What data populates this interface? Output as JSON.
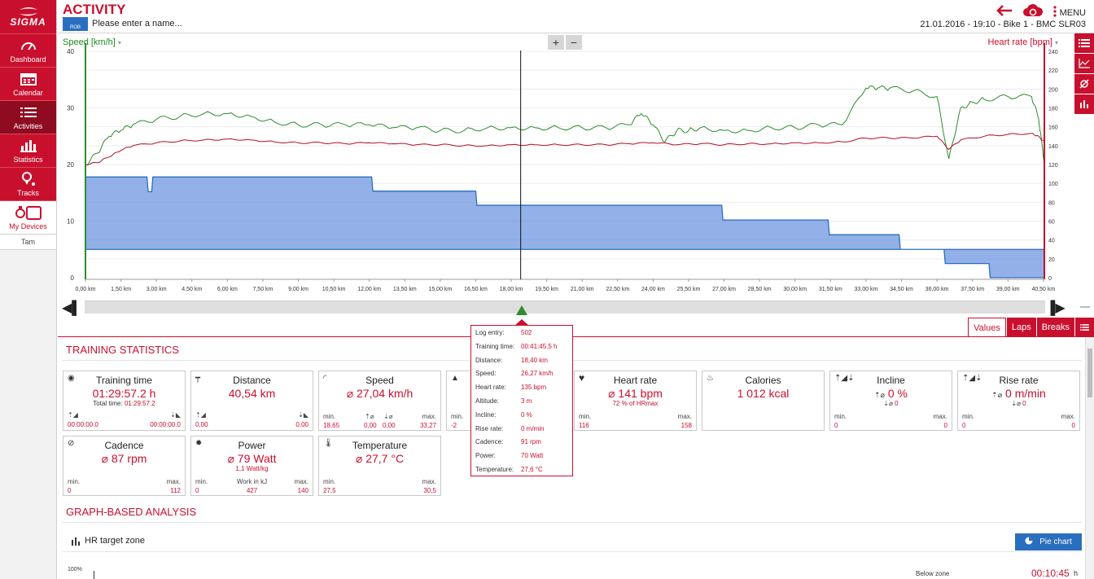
{
  "brand": {
    "name": "SIGMA"
  },
  "sidebar": {
    "items": [
      {
        "label": "Dashboard",
        "icon": "gauge-icon"
      },
      {
        "label": "Calendar",
        "icon": "calendar-icon"
      },
      {
        "label": "Activities",
        "icon": "list-icon",
        "active": true
      },
      {
        "label": "Statistics",
        "icon": "bar-chart-icon"
      },
      {
        "label": "Tracks",
        "icon": "map-pin-icon"
      },
      {
        "label": "My Devices",
        "icon": "devices-icon"
      }
    ],
    "user": "Tam"
  },
  "header": {
    "title": "ACTIVITY",
    "sport_badge": "ROB",
    "name_placeholder": "Please enter a name...",
    "menu_label": "MENU",
    "info": "21.01.2016  -  19:10  -  Bike 1  -  BMC SLR03"
  },
  "chart": {
    "left_axis_label": "Speed [km/h]",
    "right_axis_label": "Heart rate [bpm]",
    "zoom_in": "+",
    "zoom_out": "−"
  },
  "chart_data": {
    "type": "line",
    "x_label_unit": "km",
    "x_ticks": [
      "0,00 km",
      "1,50 km",
      "3,00 km",
      "4,50 km",
      "6,00 km",
      "7,50 km",
      "9,00 km",
      "10,50 km",
      "12,00 km",
      "13,50 km",
      "15,00 km",
      "16,50 km",
      "18,00 km",
      "19,50 km",
      "21,00 km",
      "22,50 km",
      "24,00 km",
      "25,50 km",
      "27,00 km",
      "28,50 km",
      "30,00 km",
      "31,50 km",
      "33,00 km",
      "34,50 km",
      "36,00 km",
      "37,50 km",
      "39,00 km",
      "40,50 km"
    ],
    "y_left_ticks": [
      "0",
      "10",
      "20",
      "30",
      "40"
    ],
    "y_left_range": [
      0,
      40
    ],
    "y_right_ticks": [
      "0",
      "20",
      "40",
      "60",
      "80",
      "100",
      "120",
      "140",
      "160",
      "180",
      "200",
      "220",
      "240"
    ],
    "y_right_range": [
      0,
      240
    ],
    "xlim": [
      0,
      40.54
    ],
    "cursor_x": 18.4,
    "series": [
      {
        "color": "#2e8b2e",
        "x": [
          0,
          0.5,
          1,
          1.5,
          2,
          3,
          4,
          5,
          6,
          7,
          8,
          9,
          10,
          11,
          12,
          13,
          14,
          15,
          16,
          17,
          18,
          19,
          20,
          21,
          22,
          23,
          23.5,
          24,
          24.5,
          25,
          25.5,
          26,
          27,
          28,
          29,
          30,
          31,
          32,
          33,
          33.5,
          34,
          35,
          36,
          36.5,
          37,
          37.5,
          38,
          39,
          40,
          40.3,
          40.54
        ],
        "values": [
          20,
          22,
          25,
          26,
          27,
          28,
          28.5,
          29,
          29,
          28.5,
          27.5,
          27,
          27,
          27,
          27,
          26.5,
          26.5,
          26,
          26,
          26.5,
          26.5,
          26.5,
          26.5,
          26.5,
          26.5,
          27,
          29,
          27,
          24,
          26,
          26,
          26.5,
          26,
          26,
          26.5,
          26.5,
          27,
          27,
          33.5,
          33.5,
          33.5,
          33,
          32,
          21,
          30,
          31,
          31.5,
          32,
          32,
          28,
          20
        ]
      },
      {
        "color": "#b0102a",
        "x": [
          0,
          0.5,
          1,
          1.5,
          2,
          3,
          4,
          5,
          6,
          7,
          8,
          9,
          10,
          11,
          12,
          13,
          14,
          15,
          16,
          17,
          18,
          19,
          20,
          21,
          22,
          23,
          24,
          25,
          26,
          27,
          28,
          29,
          30,
          31,
          32,
          33,
          34,
          35,
          36,
          36.5,
          37,
          38,
          39,
          40,
          40.3,
          40.54
        ],
        "values": [
          120,
          122,
          128,
          135,
          140,
          143,
          145,
          146,
          147,
          146,
          144,
          143,
          143,
          142,
          143,
          142,
          141,
          141,
          140,
          140,
          141,
          141,
          141,
          141,
          141,
          142,
          143,
          141,
          142,
          141,
          142,
          142,
          143,
          143,
          144,
          148,
          148,
          148,
          150,
          136,
          146,
          150,
          152,
          153,
          150,
          144
        ]
      },
      {
        "color": "#6f95e0",
        "fill": true,
        "x": [
          0,
          2.6,
          2.65,
          2.8,
          2.85,
          12.1,
          12.15,
          16.5,
          16.55,
          22.0,
          26.9,
          26.95,
          31.4,
          31.45,
          34.4,
          34.45,
          36.3,
          36.35,
          38.2,
          38.25,
          40.54
        ],
        "values": [
          17.8,
          17.8,
          15.2,
          15.2,
          17.8,
          17.8,
          15.3,
          15.3,
          12.8,
          12.8,
          12.8,
          10.2,
          10.2,
          7.6,
          7.6,
          5.0,
          5.0,
          2.5,
          2.5,
          0,
          0
        ]
      }
    ]
  },
  "tabs": [
    "Values",
    "Laps",
    "Breaks"
  ],
  "training_stats_title": "TRAINING STATISTICS",
  "cards": {
    "training_time": {
      "title": "Training time",
      "value": "01:29:57.2 h",
      "sub_label": "Total time:",
      "sub_value": "01:29:57.2",
      "left": "00:00:00.0",
      "right": "00:00:00.0"
    },
    "distance": {
      "title": "Distance",
      "value": "40,54 km",
      "left": "0,00",
      "right": "0,00"
    },
    "speed": {
      "title": "Speed",
      "value": "⌀ 27,04 km/h",
      "min_label": "min.",
      "min": "18,65",
      "up": "0,00",
      "down": "0,00",
      "max_label": "max.",
      "max": "33,27"
    },
    "altitude": {
      "min_label": "min.",
      "min": "-2"
    },
    "heart_rate": {
      "title": "Heart rate",
      "value": "⌀ 141 bpm",
      "sub": "72 % of HRmax",
      "min_label": "min.",
      "min": "116",
      "max_label": "max.",
      "max": "158"
    },
    "calories": {
      "title": "Calories",
      "value": "1 012 kcal"
    },
    "incline": {
      "title": "Incline",
      "value": "0 %",
      "down": "0",
      "min_label": "min.",
      "min": "0",
      "max_label": "max.",
      "max": "0"
    },
    "rise_rate": {
      "title": "Rise rate",
      "value": "0 m/min",
      "down": "0",
      "min_label": "min.",
      "min": "0",
      "max_label": "max.",
      "max": "0"
    },
    "cadence": {
      "title": "Cadence",
      "value": "⌀ 87 rpm",
      "min_label": "min.",
      "min": "0",
      "max_label": "max.",
      "max": "112"
    },
    "power": {
      "title": "Power",
      "value": "⌀ 79 Watt",
      "sub": "1,1 Watt/kg",
      "min_label": "min.",
      "min": "0",
      "work_label": "Work in kJ",
      "work": "427",
      "max_label": "max.",
      "max": "140"
    },
    "temperature": {
      "title": "Temperature",
      "value": "⌀ 27,7 °C",
      "min_label": "min.",
      "min": "27,5",
      "max_label": "max.",
      "max": "30,5"
    }
  },
  "tooltip": [
    {
      "k": "Log entry:",
      "v": "502"
    },
    {
      "k": "Training time:",
      "v": "00:41:45.5 h"
    },
    {
      "k": "Distance:",
      "v": "18,40 km"
    },
    {
      "k": "Speed:",
      "v": "26,27 km/h"
    },
    {
      "k": "Heart rate:",
      "v": "135 bpm"
    },
    {
      "k": "Altitude:",
      "v": "3 m"
    },
    {
      "k": "Incline:",
      "v": "0 %"
    },
    {
      "k": "Rise rate:",
      "v": "0 m/min"
    },
    {
      "k": "Cadence:",
      "v": "91 rpm"
    },
    {
      "k": "Power:",
      "v": "70 Watt"
    },
    {
      "k": "Temperature:",
      "v": "27,6 °C"
    }
  ],
  "graph_analysis": {
    "title": "GRAPH-BASED ANALYSIS",
    "hr_zone_title": "HR target zone",
    "pie_button": "Pie chart",
    "pct_label": "100%",
    "below_zone_label": "Below zone",
    "below_zone_time": "00:10:45",
    "below_zone_unit": "h"
  },
  "colors": {
    "accent": "#c8102e",
    "speed": "#2e8b2e",
    "hr": "#b0102a",
    "altitude": "#6f95e0",
    "button_blue": "#2a6fbf"
  }
}
